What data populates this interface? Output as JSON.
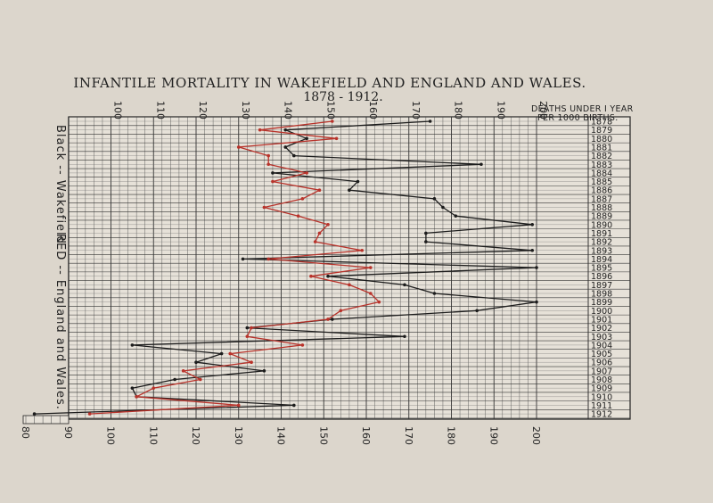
{
  "chart_data": {
    "type": "line",
    "title": "INFANTILE MORTALITY IN WAKEFIELD AND ENGLAND AND WALES.",
    "subtitle": "1878 - 1912.",
    "unit_label_line1": "DEATHS UNDER I YEAR",
    "unit_label_line2": "PER 1000 BIRTHS.",
    "legend_black": "Black -- Wakefield",
    "legend_red": "RED -- England and Wales.",
    "xlim": [
      80,
      200
    ],
    "top_ticks": [
      "100",
      "110",
      "120",
      "130",
      "140",
      "150",
      "160",
      "170",
      "180",
      "190",
      "200"
    ],
    "bottom_ticks": [
      "80",
      "90",
      "100",
      "110",
      "120",
      "130",
      "140",
      "150",
      "160",
      "170",
      "180",
      "190",
      "200"
    ],
    "years": [
      "1878",
      "1879",
      "1880",
      "1881",
      "1882",
      "1883",
      "1884",
      "1885",
      "1886",
      "1887",
      "1888",
      "1889",
      "1890",
      "1891",
      "1892",
      "1893",
      "1894",
      "1895",
      "1896",
      "1897",
      "1898",
      "1899",
      "1900",
      "1901",
      "1902",
      "1903",
      "1904",
      "1905",
      "1906",
      "1907",
      "1908",
      "1909",
      "1910",
      "1911",
      "1912"
    ],
    "series": [
      {
        "name": "Wakefield",
        "color": "#1c1c1c",
        "values": [
          175,
          141,
          146,
          141,
          143,
          187,
          138,
          158,
          156,
          176,
          178,
          181,
          199,
          174,
          174,
          199,
          131,
          200,
          151,
          169,
          176,
          200,
          186,
          152,
          132,
          169,
          105,
          126,
          120,
          136,
          115,
          105,
          106,
          143,
          82
        ]
      },
      {
        "name": "England and Wales",
        "color": "#b8322a",
        "values": [
          152,
          135,
          153,
          130,
          137,
          137,
          146,
          138,
          149,
          145,
          136,
          144,
          151,
          149,
          148,
          159,
          137,
          161,
          147,
          156,
          161,
          163,
          154,
          151,
          133,
          132,
          145,
          128,
          133,
          117,
          121,
          110,
          106,
          130,
          95
        ]
      }
    ]
  }
}
